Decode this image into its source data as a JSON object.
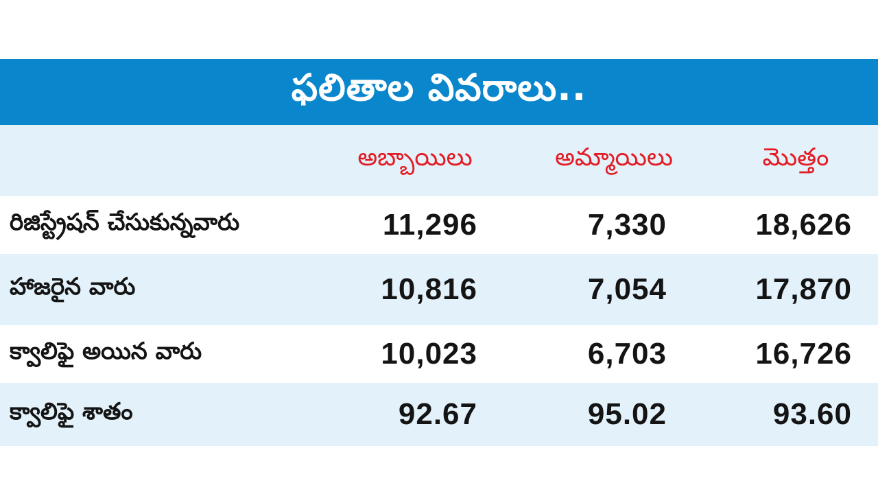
{
  "title": "ఫలితాల వివరాలు..",
  "colors": {
    "title_bar": "#0a86cc",
    "title_text": "#ffffff",
    "header_text": "#e31b23",
    "row_alt": "#e3f1fa",
    "body_text": "#141414"
  },
  "table": {
    "headers": {
      "boys": "అబ్బాయిలు",
      "girls": "అమ్మాయిలు",
      "total": "మొత్తం"
    },
    "rows": [
      {
        "label": "రిజిస్ట్రేషన్ చేసుకున్నవారు",
        "boys": "11,296",
        "girls": "7,330",
        "total": "18,626"
      },
      {
        "label": "హాజరైన వారు",
        "boys": "10,816",
        "girls": "7,054",
        "total": "17,870"
      },
      {
        "label": "క్వాలిఫై అయిన వారు",
        "boys": "10,023",
        "girls": "6,703",
        "total": "16,726"
      },
      {
        "label": "క్వాలిఫై శాతం",
        "boys": "92.67",
        "girls": "95.02",
        "total": "93.60"
      }
    ]
  }
}
